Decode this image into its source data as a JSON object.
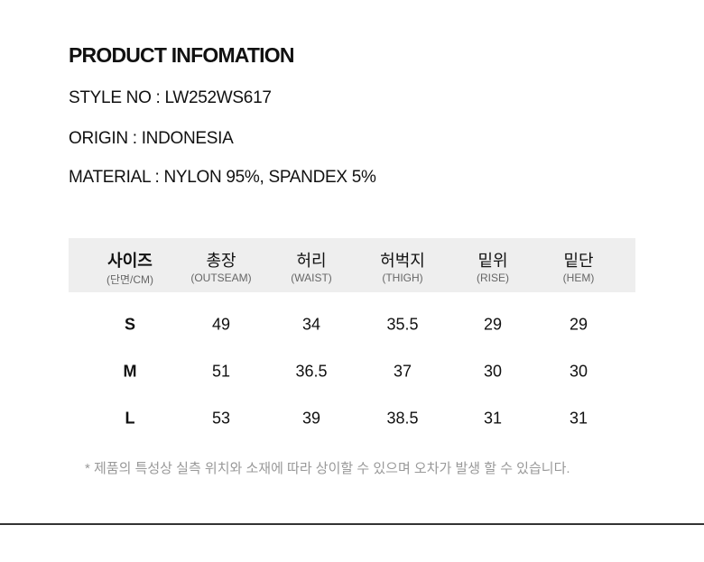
{
  "title": "PRODUCT INFOMATION",
  "style_no": "STYLE NO : LW252WS617",
  "origin": "ORIGIN : INDONESIA",
  "material": "MATERIAL : NYLON 95%, SPANDEX 5%",
  "table": {
    "headers": [
      {
        "ko": "사이즈",
        "en": "(단면/CM)"
      },
      {
        "ko": "총장",
        "en": "(OUTSEAM)"
      },
      {
        "ko": "허리",
        "en": "(WAIST)"
      },
      {
        "ko": "허벅지",
        "en": "(THIGH)"
      },
      {
        "ko": "밑위",
        "en": "(RISE)"
      },
      {
        "ko": "밑단",
        "en": "(HEM)"
      }
    ],
    "rows": [
      [
        "S",
        "49",
        "34",
        "35.5",
        "29",
        "29"
      ],
      [
        "M",
        "51",
        "36.5",
        "37",
        "30",
        "30"
      ],
      [
        "L",
        "53",
        "39",
        "38.5",
        "31",
        "31"
      ]
    ]
  },
  "note": "* 제품의 특성상 실측 위치와 소재에 따라 상이할 수 있으며 오차가 발생 할 수 있습니다."
}
